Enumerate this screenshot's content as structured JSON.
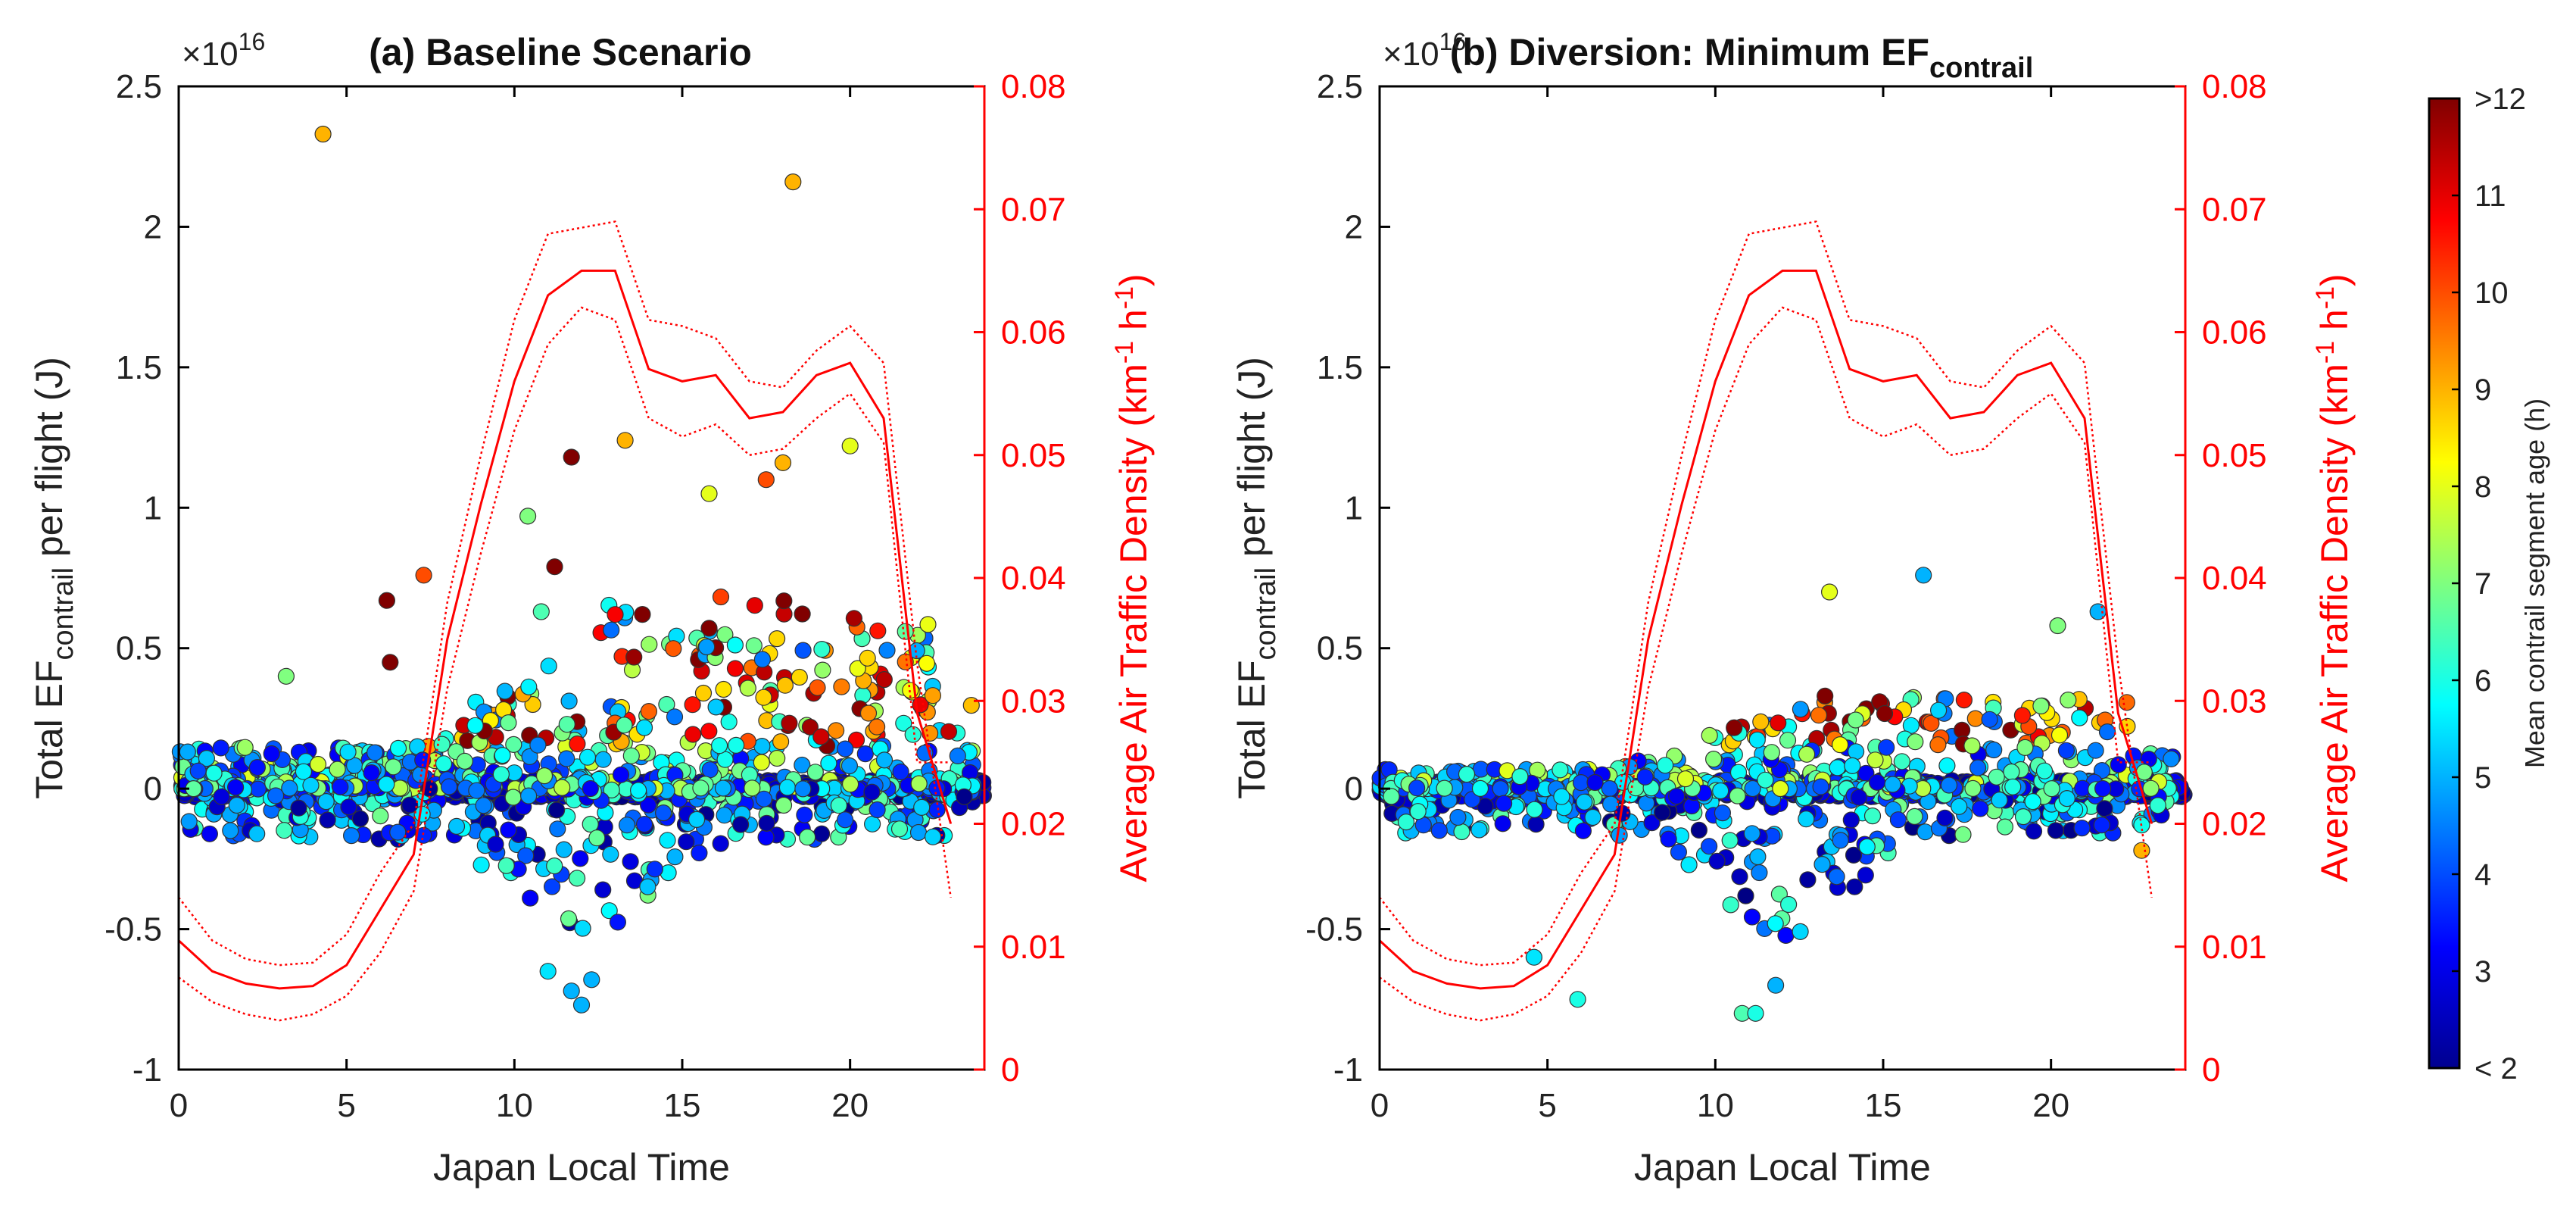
{
  "figure": {
    "colorbar": {
      "title": "Mean contrail segment age (h)",
      "ticks": [
        2,
        3,
        4,
        5,
        6,
        7,
        8,
        9,
        10,
        11,
        12
      ],
      "tick_labels": [
        "< 2",
        "3",
        "4",
        "5",
        "6",
        "7",
        "8",
        "9",
        "10",
        "11",
        ">12"
      ],
      "range": [
        2,
        12
      ],
      "colormap": "jet"
    },
    "right_axis_color": "#ff0000",
    "marker_edge_color": "#333333"
  },
  "chart_data": [
    {
      "type": "scatter",
      "panel": "a",
      "title": "(a) Baseline Scenario",
      "xlabel": "Japan Local Time",
      "ylabel_prefix": "Total EF",
      "ylabel_sub": "contrail",
      "ylabel_suffix": " per flight (J)",
      "y_exponent_label": "×10",
      "y_exponent_power": "16",
      "xlim": [
        0,
        24
      ],
      "ylim": [
        -1,
        2.5
      ],
      "x_ticks": [
        0,
        5,
        10,
        15,
        20
      ],
      "y_ticks": [
        -1,
        -0.5,
        0,
        0.5,
        1,
        1.5,
        2,
        2.5
      ],
      "y_tick_labels": [
        "-1",
        "-0.5",
        "0",
        "0.5",
        "1",
        "1.5",
        "2",
        "2.5"
      ],
      "y2label_main": "Average Air Traffic Density (km",
      "y2label_mid": " h",
      "y2label_end": ")",
      "y2label_sup": "-1",
      "y2lim": [
        0,
        0.08
      ],
      "y2_ticks": [
        0,
        0.01,
        0.02,
        0.03,
        0.04,
        0.05,
        0.06,
        0.07,
        0.08
      ],
      "y2_tick_labels": [
        "0",
        "0.01",
        "0.02",
        "0.03",
        "0.04",
        "0.05",
        "0.06",
        "0.07",
        "0.08"
      ],
      "density_hours": [
        0,
        1,
        2,
        3,
        4,
        5,
        6,
        7,
        8,
        9,
        10,
        11,
        12,
        13,
        14,
        15,
        16,
        17,
        18,
        19,
        20,
        21,
        22,
        23
      ],
      "density_mean": [
        0.0105,
        0.008,
        0.007,
        0.0066,
        0.0068,
        0.0085,
        0.013,
        0.0175,
        0.035,
        0.046,
        0.056,
        0.063,
        0.065,
        0.065,
        0.057,
        0.056,
        0.0565,
        0.053,
        0.0535,
        0.0565,
        0.0575,
        0.053,
        0.029,
        0.02
      ],
      "density_upper": [
        0.014,
        0.0105,
        0.009,
        0.0085,
        0.0087,
        0.011,
        0.016,
        0.02,
        0.038,
        0.05,
        0.061,
        0.068,
        0.0685,
        0.069,
        0.061,
        0.0605,
        0.0595,
        0.056,
        0.0555,
        0.0585,
        0.0605,
        0.0575,
        0.033,
        0.014
      ],
      "density_lower": [
        0.0075,
        0.0055,
        0.0045,
        0.004,
        0.0045,
        0.006,
        0.0095,
        0.0145,
        0.031,
        0.042,
        0.052,
        0.059,
        0.062,
        0.061,
        0.053,
        0.0515,
        0.0525,
        0.05,
        0.0505,
        0.053,
        0.055,
        0.051,
        0.025,
        0.025
      ],
      "scatter_highlights": [
        {
          "x": 4.3,
          "y": 2.33,
          "age": 9
        },
        {
          "x": 18.3,
          "y": 2.16,
          "age": 9
        },
        {
          "x": 11.7,
          "y": 1.18,
          "age": 12
        },
        {
          "x": 13.3,
          "y": 1.24,
          "age": 9
        },
        {
          "x": 20.0,
          "y": 1.22,
          "age": 8
        },
        {
          "x": 10.4,
          "y": 0.97,
          "age": 7
        },
        {
          "x": 11.2,
          "y": 0.79,
          "age": 12
        },
        {
          "x": 10.8,
          "y": 0.63,
          "age": 6.5
        },
        {
          "x": 6.2,
          "y": 0.67,
          "age": 12
        },
        {
          "x": 6.3,
          "y": 0.45,
          "age": 12
        },
        {
          "x": 7.3,
          "y": 0.76,
          "age": 10
        },
        {
          "x": 3.2,
          "y": 0.4,
          "age": 7
        },
        {
          "x": 11.0,
          "y": -0.65,
          "age": 5.5
        },
        {
          "x": 11.7,
          "y": -0.72,
          "age": 5
        },
        {
          "x": 12.0,
          "y": -0.77,
          "age": 5
        },
        {
          "x": 12.3,
          "y": -0.68,
          "age": 5
        },
        {
          "x": 15.8,
          "y": 1.05,
          "age": 8
        },
        {
          "x": 17.5,
          "y": 1.1,
          "age": 10
        },
        {
          "x": 18.0,
          "y": 1.16,
          "age": 9
        }
      ],
      "scatter_generator": {
        "seed": 12345,
        "n_core": 900,
        "n_cloud": 1100,
        "pos_scale": 0.42,
        "neg_scale": 0.18,
        "daytime_neg_scale": 0.36
      }
    },
    {
      "type": "scatter",
      "panel": "b",
      "title_main": "(b) Diversion: Minimum EF",
      "title_sub": "contrail",
      "xlabel": "Japan Local Time",
      "ylabel_prefix": "Total EF",
      "ylabel_sub": "contrail",
      "ylabel_suffix": " per flight (J)",
      "y_exponent_label": "×10",
      "y_exponent_power": "16",
      "xlim": [
        0,
        24
      ],
      "ylim": [
        -1,
        2.5
      ],
      "x_ticks": [
        0,
        5,
        10,
        15,
        20
      ],
      "y_ticks": [
        -1,
        -0.5,
        0,
        0.5,
        1,
        1.5,
        2,
        2.5
      ],
      "y_tick_labels": [
        "-1",
        "-0.5",
        "0",
        "0.5",
        "1",
        "1.5",
        "2",
        "2.5"
      ],
      "y2label_main": "Average Air Traffic Density (km",
      "y2label_mid": " h",
      "y2label_end": ")",
      "y2label_sup": "-1",
      "y2lim": [
        0,
        0.08
      ],
      "y2_ticks": [
        0,
        0.01,
        0.02,
        0.03,
        0.04,
        0.05,
        0.06,
        0.07,
        0.08
      ],
      "y2_tick_labels": [
        "0",
        "0.01",
        "0.02",
        "0.03",
        "0.04",
        "0.05",
        "0.06",
        "0.07",
        "0.08"
      ],
      "density_hours": [
        0,
        1,
        2,
        3,
        4,
        5,
        6,
        7,
        8,
        9,
        10,
        11,
        12,
        13,
        14,
        15,
        16,
        17,
        18,
        19,
        20,
        21,
        22,
        23
      ],
      "density_mean": [
        0.0105,
        0.008,
        0.007,
        0.0066,
        0.0068,
        0.0085,
        0.013,
        0.0175,
        0.035,
        0.046,
        0.056,
        0.063,
        0.065,
        0.065,
        0.057,
        0.056,
        0.0565,
        0.053,
        0.0535,
        0.0565,
        0.0575,
        0.053,
        0.029,
        0.02
      ],
      "density_upper": [
        0.014,
        0.0105,
        0.009,
        0.0085,
        0.0087,
        0.011,
        0.016,
        0.02,
        0.038,
        0.05,
        0.061,
        0.068,
        0.0685,
        0.069,
        0.061,
        0.0605,
        0.0595,
        0.056,
        0.0555,
        0.0585,
        0.0605,
        0.0575,
        0.033,
        0.014
      ],
      "density_lower": [
        0.0075,
        0.0055,
        0.0045,
        0.004,
        0.0045,
        0.006,
        0.0095,
        0.0145,
        0.031,
        0.042,
        0.052,
        0.059,
        0.062,
        0.061,
        0.053,
        0.0515,
        0.0525,
        0.05,
        0.0505,
        0.053,
        0.055,
        0.051,
        0.025,
        0.025
      ],
      "scatter_highlights": [
        {
          "x": 13.4,
          "y": 0.7,
          "age": 8
        },
        {
          "x": 16.2,
          "y": 0.76,
          "age": 5
        },
        {
          "x": 21.4,
          "y": 0.63,
          "age": 5
        },
        {
          "x": 20.2,
          "y": 0.58,
          "age": 7
        },
        {
          "x": 10.8,
          "y": -0.8,
          "age": 6.5
        },
        {
          "x": 11.2,
          "y": -0.8,
          "age": 6
        },
        {
          "x": 5.9,
          "y": -0.75,
          "age": 6
        },
        {
          "x": 11.8,
          "y": -0.7,
          "age": 5
        },
        {
          "x": 4.6,
          "y": -0.6,
          "age": 5.5
        },
        {
          "x": 22.7,
          "y": -0.22,
          "age": 9
        }
      ],
      "scatter_generator": {
        "seed": 67890,
        "n_core": 900,
        "n_cloud": 900,
        "pos_scale": 0.2,
        "neg_scale": 0.16,
        "daytime_neg_scale": 0.38
      }
    }
  ]
}
